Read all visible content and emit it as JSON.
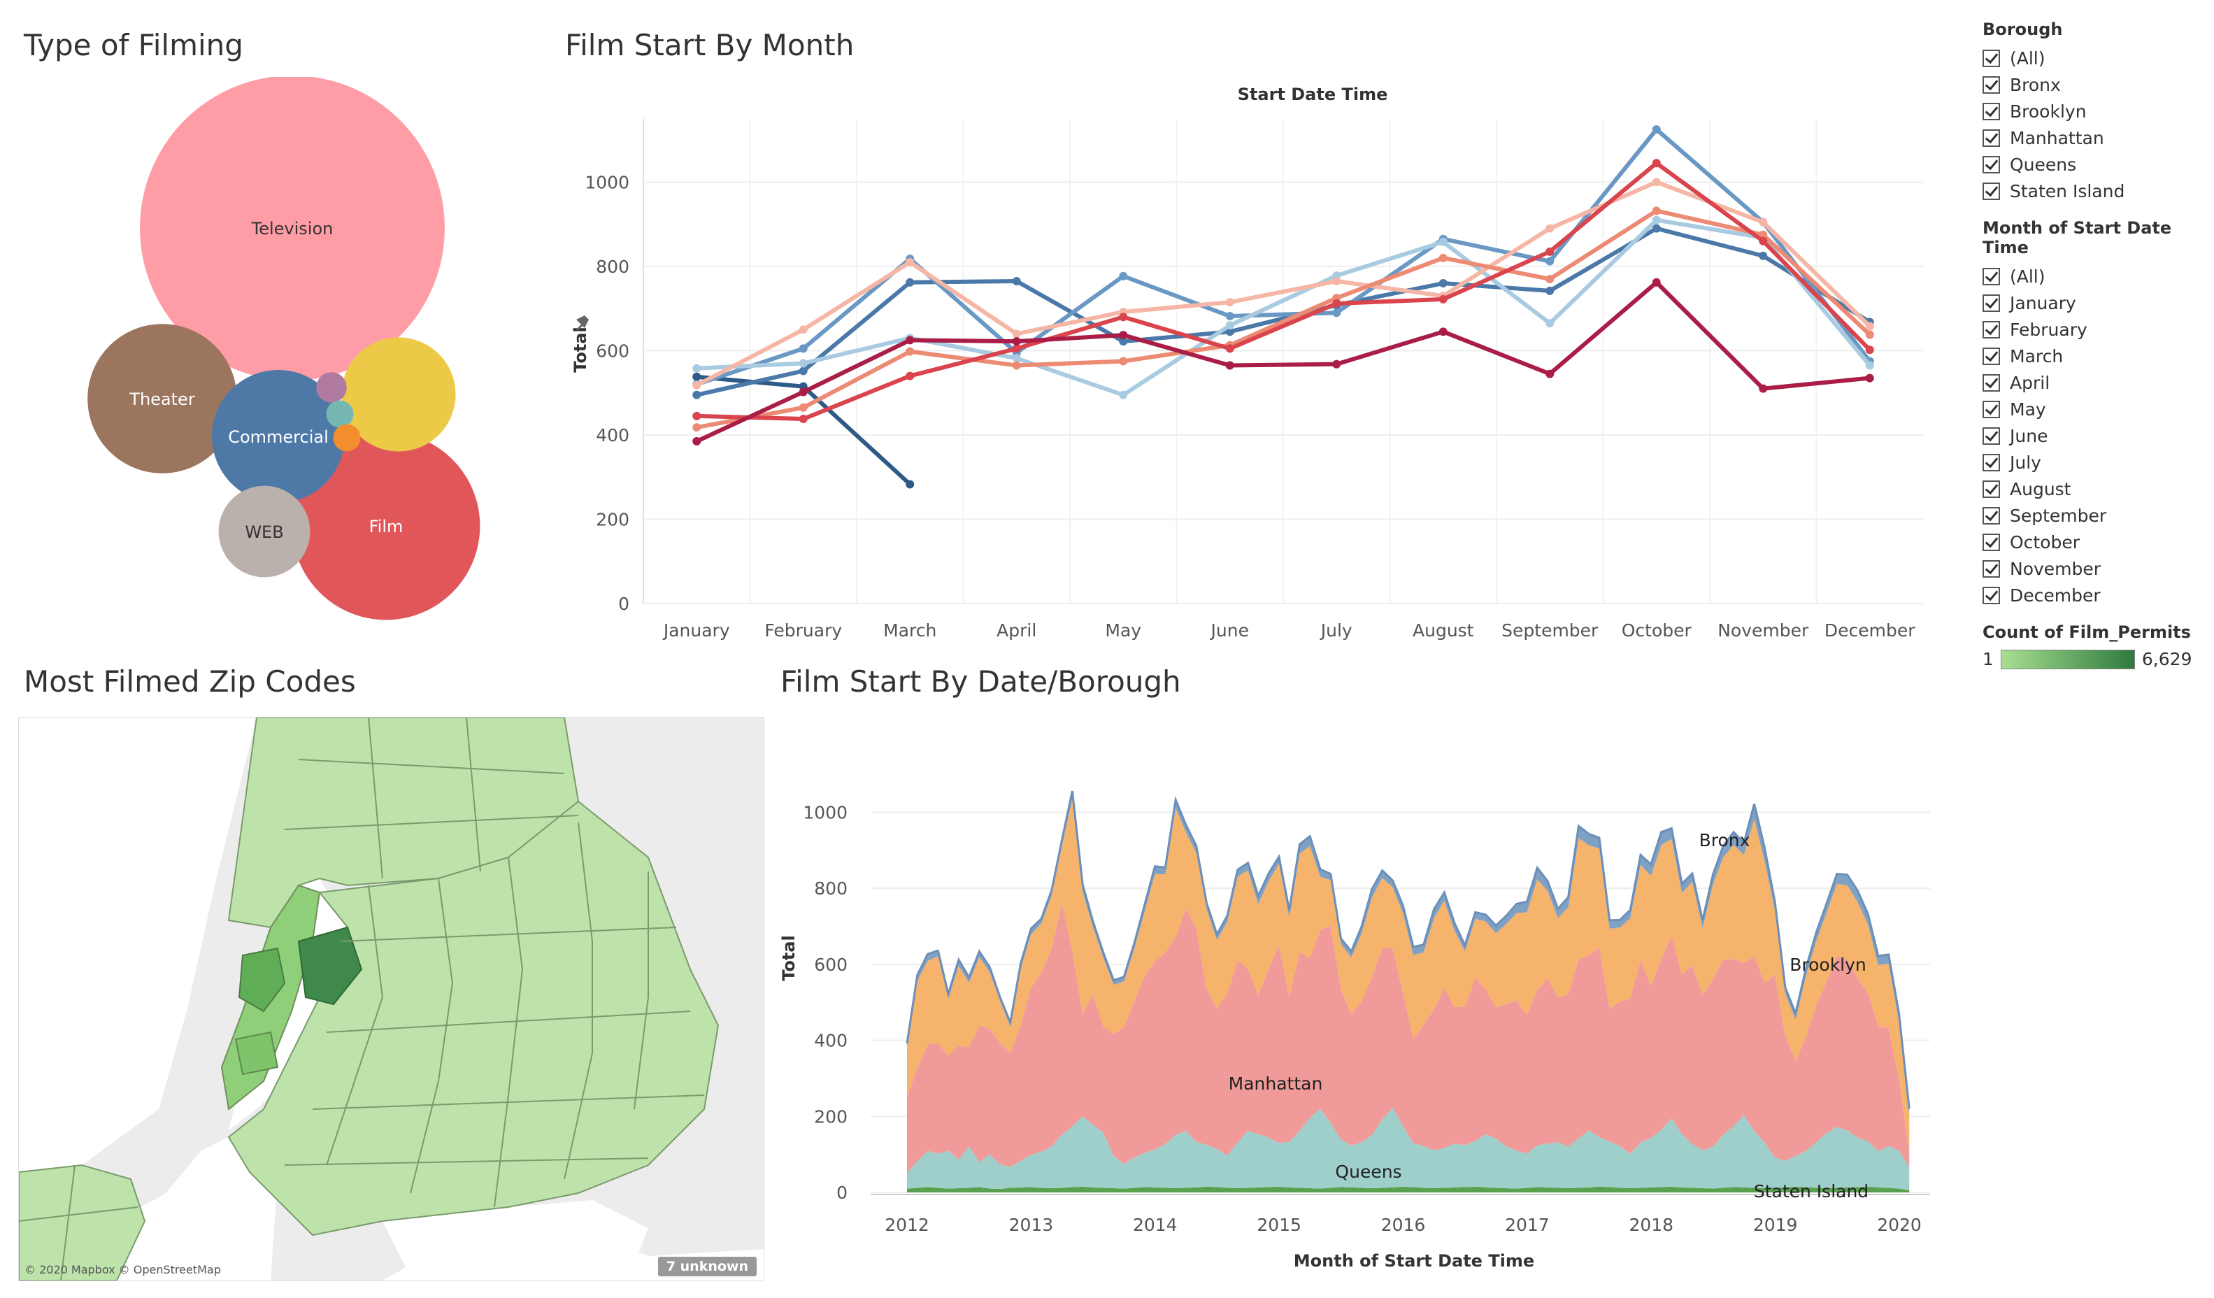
{
  "titles": {
    "type_of_filming": "Type of Filming",
    "film_start_by_month": "Film Start By Month",
    "most_filmed_zip_codes": "Most Filmed Zip Codes",
    "film_start_by_date_borough": "Film Start By Date/Borough"
  },
  "legend": {
    "borough_title": "Borough",
    "borough_items": [
      "(All)",
      "Bronx",
      "Brooklyn",
      "Manhattan",
      "Queens",
      "Staten Island"
    ],
    "month_title": "Month of Start Date Time",
    "month_items": [
      "(All)",
      "January",
      "February",
      "March",
      "April",
      "May",
      "June",
      "July",
      "August",
      "September",
      "October",
      "November",
      "December"
    ],
    "count_title": "Count of Film_Permits",
    "count_min": "1",
    "count_max": "6,629"
  },
  "map": {
    "attribution": "© 2020 Mapbox © OpenStreetMap",
    "unknown_badge": "7 unknown"
  },
  "chart_data": [
    {
      "type": "bubble",
      "title": "Type of Filming",
      "items": [
        {
          "label": "Television",
          "value": 100,
          "color": "#ff9da7"
        },
        {
          "label": "Film",
          "value": 38,
          "color": "#e15759"
        },
        {
          "label": "Theater",
          "value": 24,
          "color": "#9c755f"
        },
        {
          "label": "Commercial",
          "value": 19,
          "color": "#4e79a7"
        },
        {
          "label": "",
          "value": 14,
          "color": "#edc948"
        },
        {
          "label": "WEB",
          "value": 9,
          "color": "#bab0ac"
        },
        {
          "label": "",
          "value": 1,
          "color": "#b07aa1"
        },
        {
          "label": "",
          "value": 0.8,
          "color": "#76b7b2"
        },
        {
          "label": "",
          "value": 0.8,
          "color": "#f28e2b"
        }
      ]
    },
    {
      "type": "line",
      "title": "Film Start By Month",
      "subtitle": "Start Date Time",
      "xlabel": "",
      "ylabel": "Total",
      "ylim": [
        0,
        1150
      ],
      "yticks": [
        0,
        200,
        400,
        600,
        800,
        1000
      ],
      "categories": [
        "January",
        "February",
        "March",
        "April",
        "May",
        "June",
        "July",
        "August",
        "September",
        "October",
        "November",
        "December"
      ],
      "series": [
        {
          "color": "#2e5a87",
          "values": [
            538,
            515,
            283,
            null,
            null,
            null,
            null,
            null,
            null,
            null,
            null,
            null
          ]
        },
        {
          "color": "#4a78a8",
          "values": [
            495,
            552,
            762,
            765,
            622,
            645,
            708,
            760,
            742,
            890,
            825,
            668
          ]
        },
        {
          "color": "#6a98c4",
          "values": [
            520,
            605,
            818,
            595,
            777,
            682,
            690,
            865,
            812,
            1125,
            905,
            575
          ]
        },
        {
          "color": "#a9cbe2",
          "values": [
            558,
            570,
            630,
            582,
            495,
            660,
            778,
            858,
            665,
            910,
            868,
            565
          ]
        },
        {
          "color": "#f6b6a5",
          "values": [
            518,
            650,
            810,
            640,
            692,
            715,
            765,
            730,
            890,
            1000,
            905,
            658
          ]
        },
        {
          "color": "#ec8a73",
          "values": [
            418,
            465,
            598,
            565,
            575,
            613,
            725,
            820,
            770,
            932,
            875,
            638
          ]
        },
        {
          "color": "#d9444d",
          "values": [
            445,
            438,
            540,
            605,
            680,
            605,
            712,
            722,
            835,
            1045,
            860,
            602
          ]
        },
        {
          "color": "#a91d47",
          "values": [
            385,
            502,
            625,
            622,
            637,
            565,
            568,
            645,
            545,
            762,
            510,
            535
          ]
        }
      ]
    },
    {
      "type": "map",
      "title": "Most Filmed Zip Codes",
      "color_measure": "Count of Film_Permits",
      "color_range": [
        1,
        6629
      ]
    },
    {
      "type": "area",
      "stacked": true,
      "title": "Film Start By Date/Borough",
      "xlabel": "Month of Start Date Time",
      "ylabel": "Total",
      "ylim": [
        0,
        1150
      ],
      "yticks": [
        0,
        200,
        400,
        600,
        800,
        1000
      ],
      "xticks": [
        2012,
        2013,
        2014,
        2015,
        2016,
        2017,
        2018,
        2019,
        2020
      ],
      "x_start": 2012,
      "step_years": 0.0833,
      "series": [
        {
          "name": "Staten Island",
          "color": "#59a14f",
          "values": [
            10,
            12,
            14,
            12,
            10,
            11,
            12,
            14,
            10,
            9,
            12,
            13,
            14,
            12,
            11,
            12,
            14,
            15,
            13,
            12,
            11,
            10,
            12,
            14,
            13,
            12,
            11,
            12,
            13,
            15,
            14,
            12,
            11,
            12,
            13,
            14,
            15,
            13,
            12,
            11,
            10,
            12,
            14,
            13,
            12,
            11,
            12,
            13,
            15,
            14,
            12,
            11,
            12,
            13,
            14,
            15,
            13,
            12,
            11,
            10,
            12,
            14,
            13,
            12,
            11,
            12,
            13,
            15,
            14,
            12,
            11,
            12,
            13,
            14,
            15,
            13,
            12,
            11,
            10,
            12,
            14,
            13,
            12,
            11,
            12,
            13,
            15,
            14,
            12,
            11,
            12,
            13,
            14,
            15,
            13,
            12,
            10,
            6
          ]
        },
        {
          "name": "Queens",
          "color": "#9fcfca",
          "values": [
            40,
            70,
            95,
            90,
            100,
            75,
            110,
            65,
            90,
            65,
            55,
            70,
            85,
            95,
            110,
            140,
            160,
            185,
            165,
            145,
            85,
            65,
            80,
            90,
            100,
            115,
            140,
            150,
            120,
            110,
            100,
            85,
            120,
            150,
            140,
            130,
            115,
            120,
            150,
            185,
            210,
            170,
            125,
            110,
            120,
            140,
            180,
            210,
            160,
            115,
            110,
            100,
            105,
            115,
            110,
            120,
            140,
            130,
            110,
            100,
            90,
            110,
            115,
            120,
            110,
            130,
            150,
            130,
            120,
            110,
            90,
            120,
            130,
            150,
            180,
            140,
            115,
            100,
            110,
            140,
            160,
            190,
            150,
            120,
            80,
            70,
            80,
            95,
            120,
            145,
            160,
            150,
            130,
            120,
            95,
            110,
            100,
            60
          ]
        },
        {
          "name": "Manhattan",
          "color": "#f09b9a",
          "values": [
            200,
            245,
            280,
            290,
            250,
            300,
            260,
            360,
            330,
            320,
            300,
            355,
            440,
            470,
            520,
            610,
            460,
            270,
            345,
            280,
            320,
            360,
            410,
            465,
            495,
            505,
            520,
            585,
            560,
            410,
            370,
            425,
            480,
            425,
            365,
            445,
            520,
            380,
            470,
            420,
            470,
            520,
            395,
            345,
            370,
            415,
            450,
            420,
            350,
            275,
            320,
            370,
            420,
            360,
            365,
            430,
            380,
            345,
            375,
            395,
            365,
            410,
            435,
            380,
            400,
            470,
            460,
            500,
            350,
            380,
            410,
            480,
            400,
            450,
            480,
            420,
            470,
            410,
            440,
            460,
            440,
            400,
            460,
            420,
            480,
            330,
            250,
            300,
            360,
            400,
            450,
            450,
            420,
            390,
            330,
            310,
            190,
            40
          ]
        },
        {
          "name": "Brooklyn",
          "color": "#f5b36c",
          "values": [
            130,
            230,
            220,
            230,
            150,
            210,
            170,
            180,
            150,
            110,
            70,
            150,
            140,
            130,
            140,
            150,
            400,
            320,
            175,
            180,
            130,
            120,
            140,
            170,
            230,
            205,
            340,
            200,
            200,
            210,
            180,
            190,
            220,
            260,
            240,
            230,
            215,
            210,
            260,
            295,
            140,
            120,
            120,
            150,
            180,
            210,
            185,
            160,
            210,
            220,
            190,
            240,
            230,
            200,
            145,
            155,
            180,
            195,
            210,
            230,
            270,
            290,
            230,
            210,
            230,
            320,
            290,
            260,
            210,
            195,
            210,
            250,
            290,
            300,
            255,
            215,
            220,
            175,
            250,
            270,
            300,
            285,
            360,
            320,
            170,
            110,
            110,
            160,
            170,
            180,
            190,
            195,
            200,
            180,
            160,
            170,
            150,
            100
          ]
        },
        {
          "name": "Bronx",
          "color": "#7fa1c4",
          "values": [
            12,
            15,
            18,
            14,
            12,
            16,
            14,
            15,
            13,
            10,
            10,
            14,
            15,
            13,
            14,
            16,
            22,
            20,
            15,
            14,
            12,
            12,
            14,
            18,
            20,
            18,
            22,
            20,
            19,
            16,
            15,
            16,
            18,
            20,
            22,
            20,
            18,
            19,
            24,
            26,
            20,
            16,
            14,
            16,
            18,
            22,
            20,
            18,
            20,
            22,
            20,
            24,
            22,
            20,
            16,
            17,
            18,
            20,
            22,
            24,
            28,
            30,
            26,
            24,
            26,
            32,
            30,
            28,
            22,
            20,
            22,
            26,
            30,
            34,
            28,
            24,
            22,
            20,
            26,
            30,
            34,
            32,
            40,
            36,
            22,
            16,
            16,
            20,
            22,
            24,
            26,
            28,
            30,
            28,
            24,
            24,
            22,
            14
          ]
        }
      ],
      "annotations": [
        "Bronx",
        "Brooklyn",
        "Manhattan",
        "Queens",
        "Staten Island"
      ]
    }
  ]
}
